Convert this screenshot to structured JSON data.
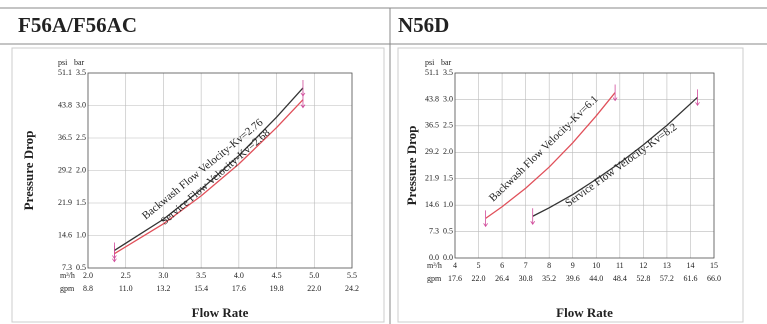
{
  "header": {
    "cells": [
      "F56A/F56AC",
      "N56D"
    ]
  },
  "chart_data": [
    {
      "type": "line",
      "xlabel": "Flow Rate",
      "ylabel": "Pressure Drop",
      "y_unit": "bar",
      "psi_unit": "psi",
      "x_unit": "m³/h",
      "gpm_unit": "gpm",
      "xlim": [
        2,
        5.5
      ],
      "ylim": [
        0.5,
        3.5
      ],
      "grid": true,
      "xticks": [
        {
          "value": 2,
          "label": "2.0"
        },
        {
          "value": 2.5,
          "label": "2.5"
        },
        {
          "value": 3,
          "label": "3.0"
        },
        {
          "value": 3.5,
          "label": "3.5"
        },
        {
          "value": 4,
          "label": "4.0"
        },
        {
          "value": 4.5,
          "label": "4.5"
        },
        {
          "value": 5,
          "label": "5.0"
        },
        {
          "value": 5.5,
          "label": "5.5"
        }
      ],
      "gpm_ticks": [
        {
          "value": 2,
          "label": "8.8"
        },
        {
          "value": 2.5,
          "label": "11.0"
        },
        {
          "value": 3,
          "label": "13.2"
        },
        {
          "value": 3.5,
          "label": "15.4"
        },
        {
          "value": 4,
          "label": "17.6"
        },
        {
          "value": 4.5,
          "label": "19.8"
        },
        {
          "value": 5,
          "label": "22.0"
        },
        {
          "value": 5.5,
          "label": "24.2"
        }
      ],
      "yticks": [
        0.5,
        1.5,
        2.5,
        3.5,
        {
          "value": 1,
          "label": "1.0"
        },
        {
          "value": 2,
          "label": "2.0"
        },
        {
          "value": 3,
          "label": "3.0"
        }
      ],
      "psi_ticks": [
        {
          "value": 0.5,
          "label": "7.3"
        },
        {
          "value": 1,
          "label": "14.6"
        },
        {
          "value": 1.5,
          "label": "21.9"
        },
        {
          "value": 2,
          "label": "29.2"
        },
        {
          "value": 2.5,
          "label": "36.5"
        },
        {
          "value": 3,
          "label": "43.8"
        },
        {
          "value": 3.5,
          "label": "51.1"
        }
      ],
      "series": [
        {
          "name": "Backwash Flow Velocity-Kv=2.76",
          "color": "#e0505a",
          "x": [
            2.35,
            3,
            3.5,
            4,
            4.5,
            4.85
          ],
          "values": [
            0.72,
            1.18,
            1.61,
            2.1,
            2.66,
            3.09
          ]
        },
        {
          "name": "Service Flow Velocity-Kv=2.68",
          "color": "#333333",
          "x": [
            2.35,
            3,
            3.5,
            4,
            4.5,
            4.85
          ],
          "values": [
            0.77,
            1.25,
            1.71,
            2.23,
            2.82,
            3.27
          ]
        }
      ]
    },
    {
      "type": "line",
      "xlabel": "Flow Rate",
      "ylabel": "Pressure Drop",
      "y_unit": "bar",
      "psi_unit": "psi",
      "x_unit": "m³/h",
      "gpm_unit": "gpm",
      "xlim": [
        4,
        15
      ],
      "ylim": [
        0,
        3.5
      ],
      "grid": true,
      "xticks": [
        4,
        5,
        6,
        7,
        8,
        9,
        10,
        11,
        12,
        13,
        14,
        15
      ],
      "gpm_ticks": [
        {
          "value": 4,
          "label": "17.6"
        },
        {
          "value": 5,
          "label": "22.0"
        },
        {
          "value": 6,
          "label": "26.4"
        },
        {
          "value": 7,
          "label": "30.8"
        },
        {
          "value": 8,
          "label": "35.2"
        },
        {
          "value": 9,
          "label": "39.6"
        },
        {
          "value": 10,
          "label": "44.0"
        },
        {
          "value": 11,
          "label": "48.4"
        },
        {
          "value": 12,
          "label": "52.8"
        },
        {
          "value": 13,
          "label": "57.2"
        },
        {
          "value": 14,
          "label": "61.6"
        },
        {
          "value": 15,
          "label": "66.0"
        }
      ],
      "yticks": [
        {
          "value": 0,
          "label": "0.0"
        },
        0.5,
        {
          "value": 1,
          "label": "1.0"
        },
        1.5,
        {
          "value": 2,
          "label": "2.0"
        },
        2.5,
        {
          "value": 3,
          "label": "3.0"
        },
        3.5
      ],
      "psi_ticks": [
        {
          "value": 0,
          "label": "0.0"
        },
        {
          "value": 0.5,
          "label": "7.3"
        },
        {
          "value": 1,
          "label": "14.6"
        },
        {
          "value": 1.5,
          "label": "21.9"
        },
        {
          "value": 2,
          "label": "29.2"
        },
        {
          "value": 2.5,
          "label": "36.5"
        },
        {
          "value": 3,
          "label": "43.8"
        },
        {
          "value": 3.5,
          "label": "51.1"
        }
      ],
      "series": [
        {
          "name": "Backwash Flow Velocity-Kv=6.1",
          "color": "#e0505a",
          "x": [
            5.3,
            6,
            7,
            8,
            9,
            10,
            10.8
          ],
          "values": [
            0.75,
            0.97,
            1.32,
            1.72,
            2.18,
            2.69,
            3.13
          ]
        },
        {
          "name": "Service Flow Velocity-Kv=8.2",
          "color": "#333333",
          "x": [
            7.3,
            8,
            9,
            10,
            11,
            12,
            13,
            14.3
          ],
          "values": [
            0.79,
            0.95,
            1.2,
            1.49,
            1.8,
            2.14,
            2.51,
            3.04
          ]
        }
      ]
    }
  ]
}
